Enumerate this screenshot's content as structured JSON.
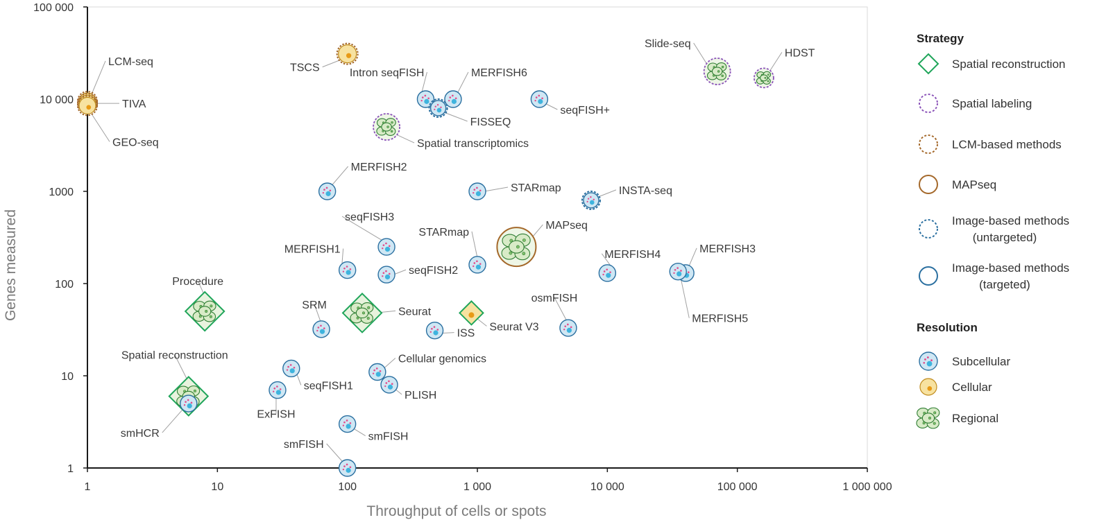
{
  "chart_data": {
    "type": "scatter",
    "xlabel": "Throughput of cells or spots",
    "ylabel": "Genes measured",
    "x_scale": "log",
    "y_scale": "log",
    "xlim": [
      1,
      1000000
    ],
    "ylim": [
      1,
      100000
    ],
    "x_ticks": [
      {
        "v": 1,
        "label": "1"
      },
      {
        "v": 10,
        "label": "10"
      },
      {
        "v": 100,
        "label": "100"
      },
      {
        "v": 1000,
        "label": "1 000"
      },
      {
        "v": 10000,
        "label": "10 000"
      },
      {
        "v": 100000,
        "label": "100 000"
      },
      {
        "v": 1000000,
        "label": "1 000 000"
      }
    ],
    "y_ticks": [
      {
        "v": 1,
        "label": "1"
      },
      {
        "v": 10,
        "label": "10"
      },
      {
        "v": 100,
        "label": "100"
      },
      {
        "v": 1000,
        "label": "1000"
      },
      {
        "v": 10000,
        "label": "10 000"
      },
      {
        "v": 100000,
        "label": "100 000"
      }
    ],
    "grid": false,
    "legend_position": "right",
    "colors": {
      "spatial_reconstruction": "#1fa55a",
      "spatial_labeling": "#8a52b8",
      "lcm": "#a4682a",
      "mapseq": "#a4682a",
      "image_untargeted": "#2a6fa0",
      "image_targeted": "#2a6fa0",
      "subcellular_fill": "#cfe7f4",
      "cellular_fill": "#f7e2a0",
      "regional_fill": "#d8ebc7"
    },
    "points": [
      {
        "label": "LCM-seq",
        "x": 1,
        "y": 9500,
        "strategy": "lcm",
        "resolution": "cellular"
      },
      {
        "label": "TIVA",
        "x": 1,
        "y": 9000,
        "strategy": "lcm",
        "resolution": "cellular"
      },
      {
        "label": "GEO-seq",
        "x": 1,
        "y": 8500,
        "strategy": "lcm",
        "resolution": "cellular"
      },
      {
        "label": "TSCS",
        "x": 100,
        "y": 31000,
        "strategy": "lcm",
        "resolution": "cellular"
      },
      {
        "label": "Intron seqFISH",
        "x": 400,
        "y": 10000,
        "strategy": "image_targeted",
        "resolution": "subcellular"
      },
      {
        "label": "MERFISH6",
        "x": 650,
        "y": 10000,
        "strategy": "image_targeted",
        "resolution": "subcellular"
      },
      {
        "label": "FISSEQ",
        "x": 500,
        "y": 8000,
        "strategy": "image_untargeted",
        "resolution": "subcellular"
      },
      {
        "label": "seqFISH+",
        "x": 3000,
        "y": 10000,
        "strategy": "image_targeted",
        "resolution": "subcellular"
      },
      {
        "label": "Spatial transcriptomics",
        "x": 200,
        "y": 5000,
        "strategy": "spatial_labeling",
        "resolution": "regional"
      },
      {
        "label": "Slide-seq",
        "x": 70000,
        "y": 20000,
        "strategy": "spatial_labeling",
        "resolution": "regional"
      },
      {
        "label": "HDST",
        "x": 160000,
        "y": 17000,
        "strategy": "spatial_labeling",
        "resolution": "regional"
      },
      {
        "label": "MERFISH2",
        "x": 70,
        "y": 1000,
        "strategy": "image_targeted",
        "resolution": "subcellular"
      },
      {
        "label": "STARmap",
        "x": 1000,
        "y": 1000,
        "strategy": "image_targeted",
        "resolution": "subcellular"
      },
      {
        "label": "INSTA-seq",
        "x": 7500,
        "y": 800,
        "strategy": "image_untargeted",
        "resolution": "subcellular"
      },
      {
        "label": "seqFISH3",
        "x": 200,
        "y": 250,
        "strategy": "image_targeted",
        "resolution": "subcellular"
      },
      {
        "label": "STARmap",
        "x": 1000,
        "y": 160,
        "strategy": "image_targeted",
        "resolution": "subcellular"
      },
      {
        "label": "MAPseq",
        "x": 2000,
        "y": 250,
        "strategy": "mapseq",
        "resolution": "regional"
      },
      {
        "label": "MERFISH1",
        "x": 100,
        "y": 140,
        "strategy": "image_targeted",
        "resolution": "subcellular"
      },
      {
        "label": "seqFISH2",
        "x": 200,
        "y": 125,
        "strategy": "image_targeted",
        "resolution": "subcellular"
      },
      {
        "label": "MERFISH4",
        "x": 10000,
        "y": 130,
        "strategy": "image_targeted",
        "resolution": "subcellular"
      },
      {
        "label": "MERFISH3",
        "x": 40000,
        "y": 130,
        "strategy": "image_targeted",
        "resolution": "subcellular"
      },
      {
        "label": "MERFISH5",
        "x": 35000,
        "y": 135,
        "strategy": "image_targeted",
        "resolution": "subcellular"
      },
      {
        "label": "Procedure",
        "x": 8,
        "y": 50,
        "strategy": "spatial_reconstruction",
        "resolution": "regional"
      },
      {
        "label": "SRM",
        "x": 63,
        "y": 32,
        "strategy": "image_targeted",
        "resolution": "subcellular"
      },
      {
        "label": "Seurat",
        "x": 130,
        "y": 48,
        "strategy": "spatial_reconstruction",
        "resolution": "regional"
      },
      {
        "label": "Seurat V3",
        "x": 900,
        "y": 48,
        "strategy": "spatial_reconstruction",
        "resolution": "cellular"
      },
      {
        "label": "ISS",
        "x": 470,
        "y": 31,
        "strategy": "image_targeted",
        "resolution": "subcellular"
      },
      {
        "label": "osmFISH",
        "x": 5000,
        "y": 33,
        "strategy": "image_targeted",
        "resolution": "subcellular"
      },
      {
        "label": "Spatial reconstruction",
        "x": 6,
        "y": 6,
        "strategy": "spatial_reconstruction",
        "resolution": "regional"
      },
      {
        "label": "smHCR",
        "x": 6,
        "y": 5,
        "strategy": "image_targeted",
        "resolution": "subcellular"
      },
      {
        "label": "seqFISH1",
        "x": 37,
        "y": 12,
        "strategy": "image_targeted",
        "resolution": "subcellular"
      },
      {
        "label": "ExFISH",
        "x": 29,
        "y": 7,
        "strategy": "image_targeted",
        "resolution": "subcellular"
      },
      {
        "label": "Cellular genomics",
        "x": 170,
        "y": 11,
        "strategy": "image_targeted",
        "resolution": "subcellular"
      },
      {
        "label": "PLISH",
        "x": 210,
        "y": 8,
        "strategy": "image_targeted",
        "resolution": "subcellular"
      },
      {
        "label": "smFISH",
        "x": 100,
        "y": 3,
        "strategy": "image_targeted",
        "resolution": "subcellular"
      },
      {
        "label": "smFISH",
        "x": 100,
        "y": 1,
        "strategy": "image_targeted",
        "resolution": "subcellular"
      }
    ],
    "legend": {
      "strategy_title": "Strategy",
      "strategy_items": [
        {
          "key": "spatial_reconstruction",
          "label": "Spatial reconstruction"
        },
        {
          "key": "spatial_labeling",
          "label": "Spatial labeling"
        },
        {
          "key": "lcm",
          "label": "LCM-based methods"
        },
        {
          "key": "mapseq",
          "label": "MAPseq"
        },
        {
          "key": "image_untargeted",
          "label": "Image-based methods",
          "label2": "(untargeted)"
        },
        {
          "key": "image_targeted",
          "label": "Image-based methods",
          "label2": "(targeted)"
        }
      ],
      "resolution_title": "Resolution",
      "resolution_items": [
        {
          "key": "subcellular",
          "label": "Subcellular"
        },
        {
          "key": "cellular",
          "label": "Cellular"
        },
        {
          "key": "regional",
          "label": "Regional"
        }
      ]
    }
  }
}
